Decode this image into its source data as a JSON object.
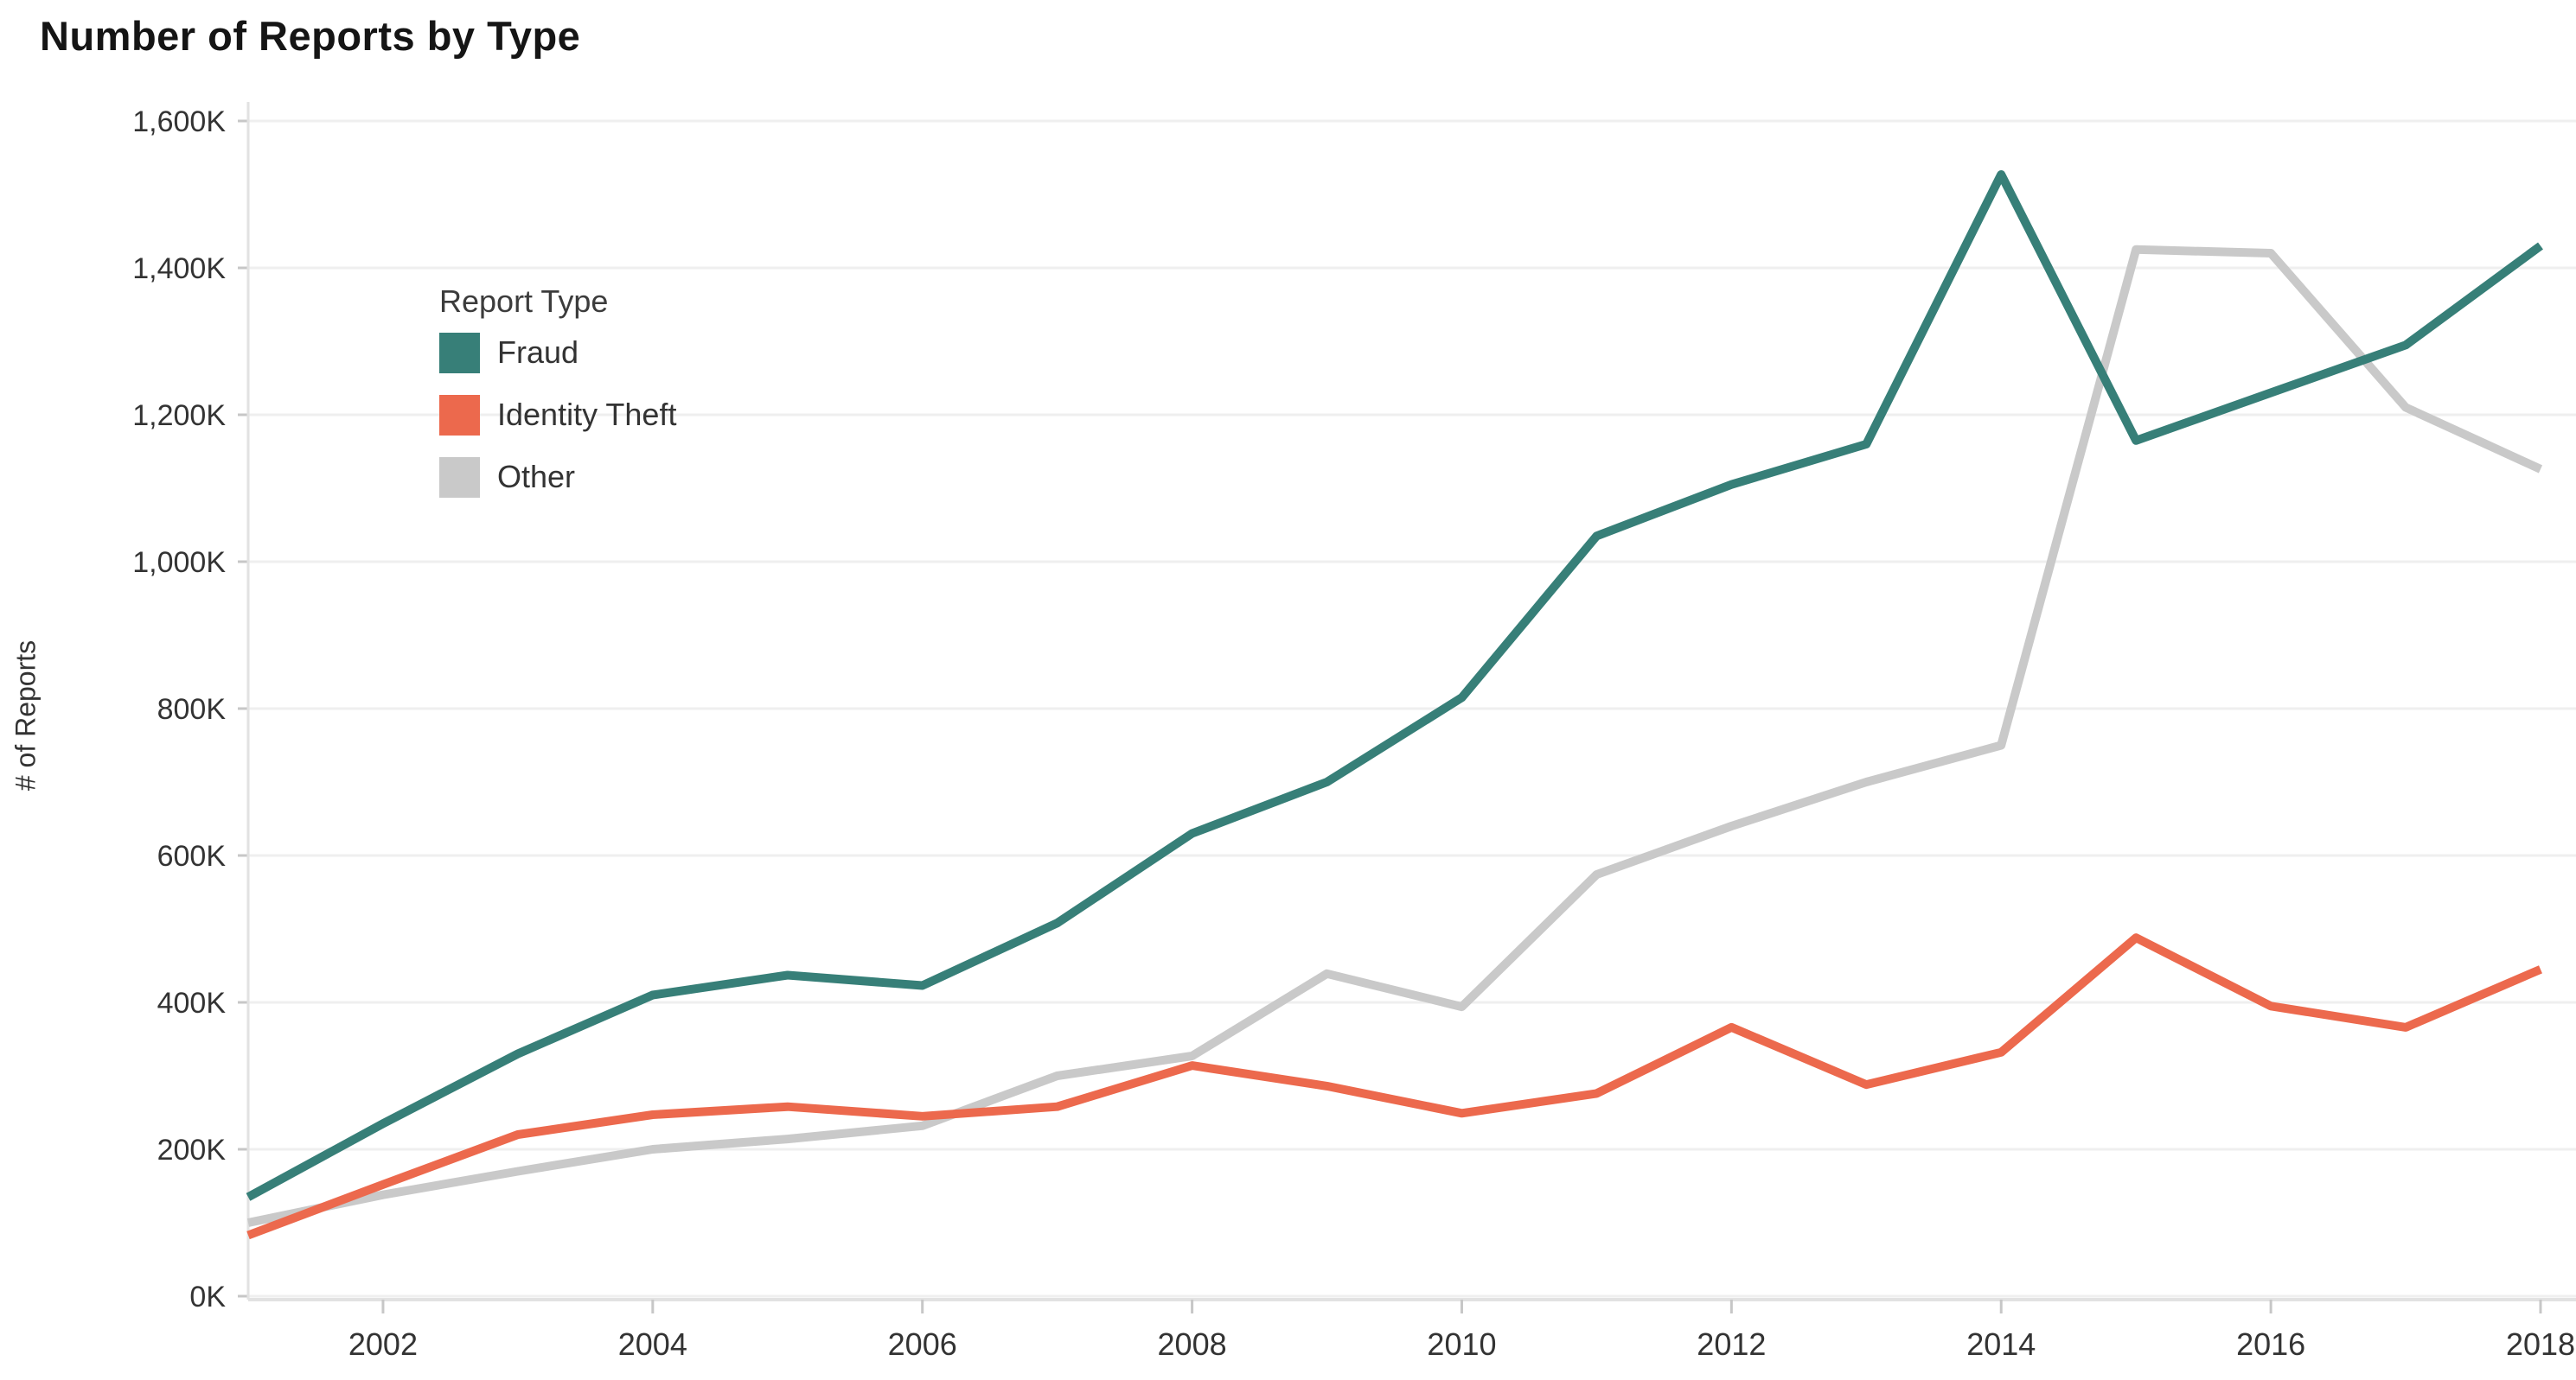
{
  "title": "Number of Reports by Type",
  "y_axis": {
    "label": "# of Reports",
    "tick_labels": [
      "0K",
      "200K",
      "400K",
      "600K",
      "800K",
      "1,000K",
      "1,200K",
      "1,400K",
      "1,600K"
    ],
    "tick_values": [
      0,
      200,
      400,
      600,
      800,
      1000,
      1200,
      1400,
      1600
    ]
  },
  "x_axis": {
    "tick_labels": [
      "2002",
      "2004",
      "2006",
      "2008",
      "2010",
      "2012",
      "2014",
      "2016",
      "2018"
    ],
    "tick_values": [
      2002,
      2004,
      2006,
      2008,
      2010,
      2012,
      2014,
      2016,
      2018
    ]
  },
  "legend": {
    "title": "Report Type",
    "items": [
      {
        "label": "Fraud",
        "color": "#377f78"
      },
      {
        "label": "Identity Theft",
        "color": "#ec694d"
      },
      {
        "label": "Other",
        "color": "#c9c9c9"
      }
    ]
  },
  "colors": {
    "fraud": "#377f78",
    "identity_theft": "#ec694d",
    "other": "#c9c9c9",
    "gridline": "#efefef",
    "axis_line": "#e2e2e2",
    "tick_mark": "#c7c7c7",
    "tick_text": "#333333"
  },
  "chart_data": {
    "type": "line",
    "title": "Number of Reports by Type",
    "ylabel": "# of Reports",
    "units": "thousands of reports (K)",
    "xlim": [
      2001,
      2018
    ],
    "ylim": [
      0,
      1600
    ],
    "grid": "horizontal",
    "legend_position": "upper-left-inside",
    "x": [
      2001,
      2002,
      2003,
      2004,
      2005,
      2006,
      2007,
      2008,
      2009,
      2010,
      2011,
      2012,
      2013,
      2014,
      2015,
      2016,
      2017,
      2018
    ],
    "series": [
      {
        "name": "Fraud",
        "color": "#377f78",
        "values": [
          135,
          235,
          330,
          410,
          437,
          423,
          508,
          630,
          700,
          815,
          1035,
          1105,
          1160,
          1527,
          1165,
          1230,
          1295,
          1430
        ]
      },
      {
        "name": "Identity Theft",
        "color": "#ec694d",
        "values": [
          83,
          152,
          220,
          247,
          258,
          245,
          258,
          314,
          286,
          249,
          276,
          366,
          288,
          332,
          488,
          395,
          366,
          445
        ]
      },
      {
        "name": "Other",
        "color": "#c9c9c9",
        "values": [
          100,
          138,
          170,
          200,
          214,
          232,
          300,
          327,
          439,
          394,
          574,
          640,
          700,
          750,
          1425,
          1420,
          1210,
          1126
        ]
      }
    ]
  }
}
